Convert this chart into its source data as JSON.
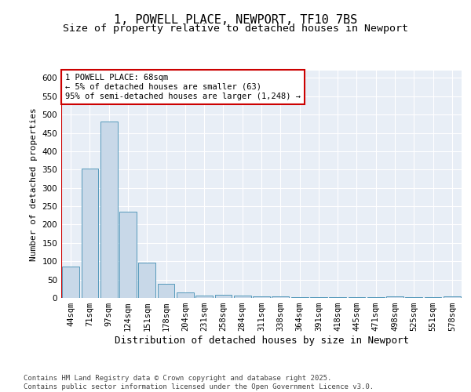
{
  "title1": "1, POWELL PLACE, NEWPORT, TF10 7BS",
  "title2": "Size of property relative to detached houses in Newport",
  "xlabel": "Distribution of detached houses by size in Newport",
  "ylabel": "Number of detached properties",
  "categories": [
    "44sqm",
    "71sqm",
    "97sqm",
    "124sqm",
    "151sqm",
    "178sqm",
    "204sqm",
    "231sqm",
    "258sqm",
    "284sqm",
    "311sqm",
    "338sqm",
    "364sqm",
    "391sqm",
    "418sqm",
    "445sqm",
    "471sqm",
    "498sqm",
    "525sqm",
    "551sqm",
    "578sqm"
  ],
  "values": [
    85,
    352,
    480,
    235,
    97,
    38,
    16,
    7,
    8,
    7,
    4,
    4,
    3,
    2,
    2,
    2,
    2,
    5,
    2,
    2,
    5
  ],
  "bar_color": "#c8d8e8",
  "bar_edge_color": "#5599bb",
  "vline_color": "#cc0000",
  "ylim": [
    0,
    620
  ],
  "yticks": [
    0,
    50,
    100,
    150,
    200,
    250,
    300,
    350,
    400,
    450,
    500,
    550,
    600
  ],
  "annotation_text": "1 POWELL PLACE: 68sqm\n← 5% of detached houses are smaller (63)\n95% of semi-detached houses are larger (1,248) →",
  "annotation_color": "#cc0000",
  "bg_color": "#e8eef6",
  "footer_text": "Contains HM Land Registry data © Crown copyright and database right 2025.\nContains public sector information licensed under the Open Government Licence v3.0.",
  "title1_fontsize": 11,
  "title2_fontsize": 9.5,
  "xlabel_fontsize": 9,
  "ylabel_fontsize": 8,
  "annotation_fontsize": 7.5,
  "footer_fontsize": 6.5,
  "tick_fontsize": 7.5
}
